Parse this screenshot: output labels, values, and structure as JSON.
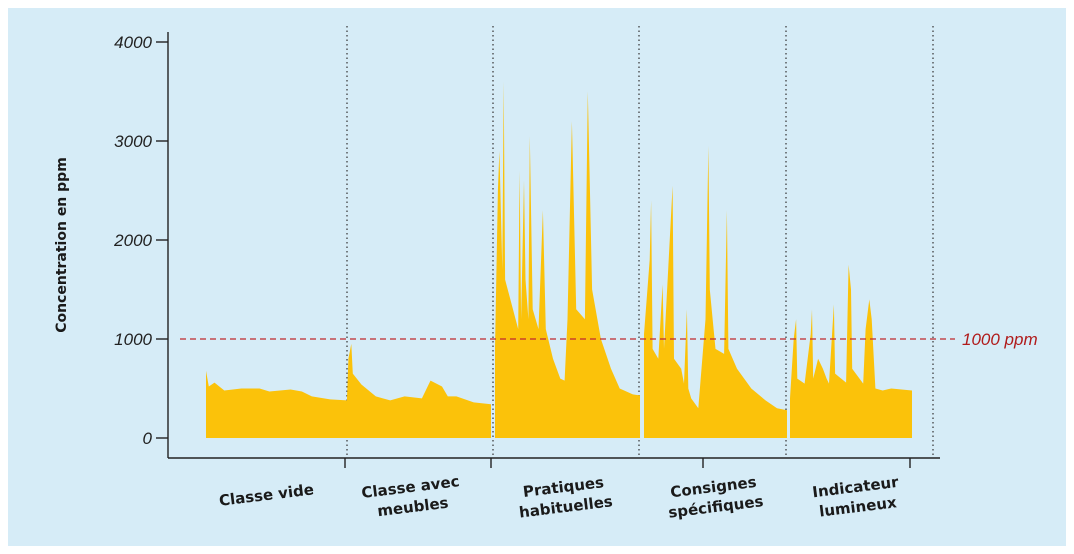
{
  "chart_data": {
    "type": "area",
    "title": "",
    "xlabel": "",
    "ylabel": "Concentration en ppm",
    "ylim": [
      0,
      4000
    ],
    "y_ticks": [
      "0",
      "1000",
      "2000",
      "3000",
      "4000"
    ],
    "y_tick_values": [
      0,
      1000,
      2000,
      3000,
      4000
    ],
    "categories": [
      "Classe vide",
      "Classe avec meubles",
      "Pratiques habituelles",
      "Consignes spécifiques",
      "Indicateur lumineux"
    ],
    "category_lines": [
      [
        "Classe vide"
      ],
      [
        "Classe avec",
        "meubles"
      ],
      [
        "Pratiques",
        "habituelles"
      ],
      [
        "Consignes",
        "spécifiques"
      ],
      [
        "Indicateur",
        "lumineux"
      ]
    ],
    "x_unit": "relative time within each phase (0 to 1)",
    "fill_color": "#fbc20a",
    "threshold": {
      "value": 1000,
      "label": "1000 ppm",
      "color": "#c0282d"
    },
    "series": [
      {
        "category": "Classe vide",
        "values": [
          [
            0,
            0
          ],
          [
            0,
            680
          ],
          [
            0.01,
            600
          ],
          [
            0.02,
            520
          ],
          [
            0.06,
            560
          ],
          [
            0.13,
            480
          ],
          [
            0.25,
            500
          ],
          [
            0.38,
            500
          ],
          [
            0.45,
            470
          ],
          [
            0.6,
            490
          ],
          [
            0.68,
            470
          ],
          [
            0.75,
            420
          ],
          [
            0.88,
            390
          ],
          [
            1,
            380
          ]
        ]
      },
      {
        "category": "Classe avec meubles",
        "values": [
          [
            0,
            0
          ],
          [
            0,
            400
          ],
          [
            0.01,
            800
          ],
          [
            0.03,
            950
          ],
          [
            0.04,
            650
          ],
          [
            0.1,
            540
          ],
          [
            0.2,
            420
          ],
          [
            0.3,
            380
          ],
          [
            0.4,
            420
          ],
          [
            0.52,
            400
          ],
          [
            0.58,
            580
          ],
          [
            0.66,
            520
          ],
          [
            0.7,
            420
          ],
          [
            0.76,
            420
          ],
          [
            0.88,
            360
          ],
          [
            1,
            340
          ]
        ]
      },
      {
        "category": "Pratiques habituelles",
        "values": [
          [
            0,
            0
          ],
          [
            0,
            900
          ],
          [
            0.02,
            2500
          ],
          [
            0.03,
            2900
          ],
          [
            0.05,
            1700
          ],
          [
            0.06,
            3600
          ],
          [
            0.07,
            1600
          ],
          [
            0.16,
            1100
          ],
          [
            0.17,
            2700
          ],
          [
            0.18,
            1200
          ],
          [
            0.2,
            2600
          ],
          [
            0.21,
            1600
          ],
          [
            0.23,
            1200
          ],
          [
            0.24,
            3050
          ],
          [
            0.26,
            1300
          ],
          [
            0.3,
            1100
          ],
          [
            0.33,
            2300
          ],
          [
            0.35,
            1100
          ],
          [
            0.4,
            800
          ],
          [
            0.45,
            600
          ],
          [
            0.48,
            580
          ],
          [
            0.5,
            1200
          ],
          [
            0.53,
            3200
          ],
          [
            0.56,
            1300
          ],
          [
            0.62,
            1200
          ],
          [
            0.64,
            3500
          ],
          [
            0.67,
            1500
          ],
          [
            0.73,
            1000
          ],
          [
            0.8,
            700
          ],
          [
            0.86,
            500
          ],
          [
            0.95,
            440
          ],
          [
            1,
            430
          ]
        ]
      },
      {
        "category": "Consignes spécifiques",
        "values": [
          [
            0,
            0
          ],
          [
            0,
            1050
          ],
          [
            0.04,
            1800
          ],
          [
            0.05,
            2400
          ],
          [
            0.06,
            900
          ],
          [
            0.1,
            800
          ],
          [
            0.13,
            1550
          ],
          [
            0.14,
            900
          ],
          [
            0.2,
            2550
          ],
          [
            0.21,
            800
          ],
          [
            0.26,
            700
          ],
          [
            0.28,
            550
          ],
          [
            0.3,
            1300
          ],
          [
            0.31,
            500
          ],
          [
            0.33,
            400
          ],
          [
            0.38,
            300
          ],
          [
            0.43,
            1200
          ],
          [
            0.45,
            2950
          ],
          [
            0.46,
            1500
          ],
          [
            0.5,
            900
          ],
          [
            0.56,
            850
          ],
          [
            0.58,
            2300
          ],
          [
            0.59,
            900
          ],
          [
            0.65,
            700
          ],
          [
            0.75,
            500
          ],
          [
            0.85,
            380
          ],
          [
            0.93,
            300
          ],
          [
            1,
            280
          ]
        ]
      },
      {
        "category": "Indicateur lumineux",
        "values": [
          [
            0,
            0
          ],
          [
            0,
            400
          ],
          [
            0.03,
            1000
          ],
          [
            0.05,
            1200
          ],
          [
            0.06,
            600
          ],
          [
            0.12,
            550
          ],
          [
            0.17,
            1050
          ],
          [
            0.18,
            1300
          ],
          [
            0.19,
            600
          ],
          [
            0.23,
            800
          ],
          [
            0.27,
            700
          ],
          [
            0.3,
            600
          ],
          [
            0.32,
            550
          ],
          [
            0.36,
            1350
          ],
          [
            0.37,
            650
          ],
          [
            0.42,
            600
          ],
          [
            0.46,
            560
          ],
          [
            0.48,
            1750
          ],
          [
            0.5,
            1500
          ],
          [
            0.51,
            700
          ],
          [
            0.6,
            550
          ],
          [
            0.62,
            1100
          ],
          [
            0.65,
            1400
          ],
          [
            0.67,
            1200
          ],
          [
            0.7,
            500
          ],
          [
            0.76,
            480
          ],
          [
            0.83,
            500
          ],
          [
            1,
            480
          ]
        ]
      }
    ]
  }
}
